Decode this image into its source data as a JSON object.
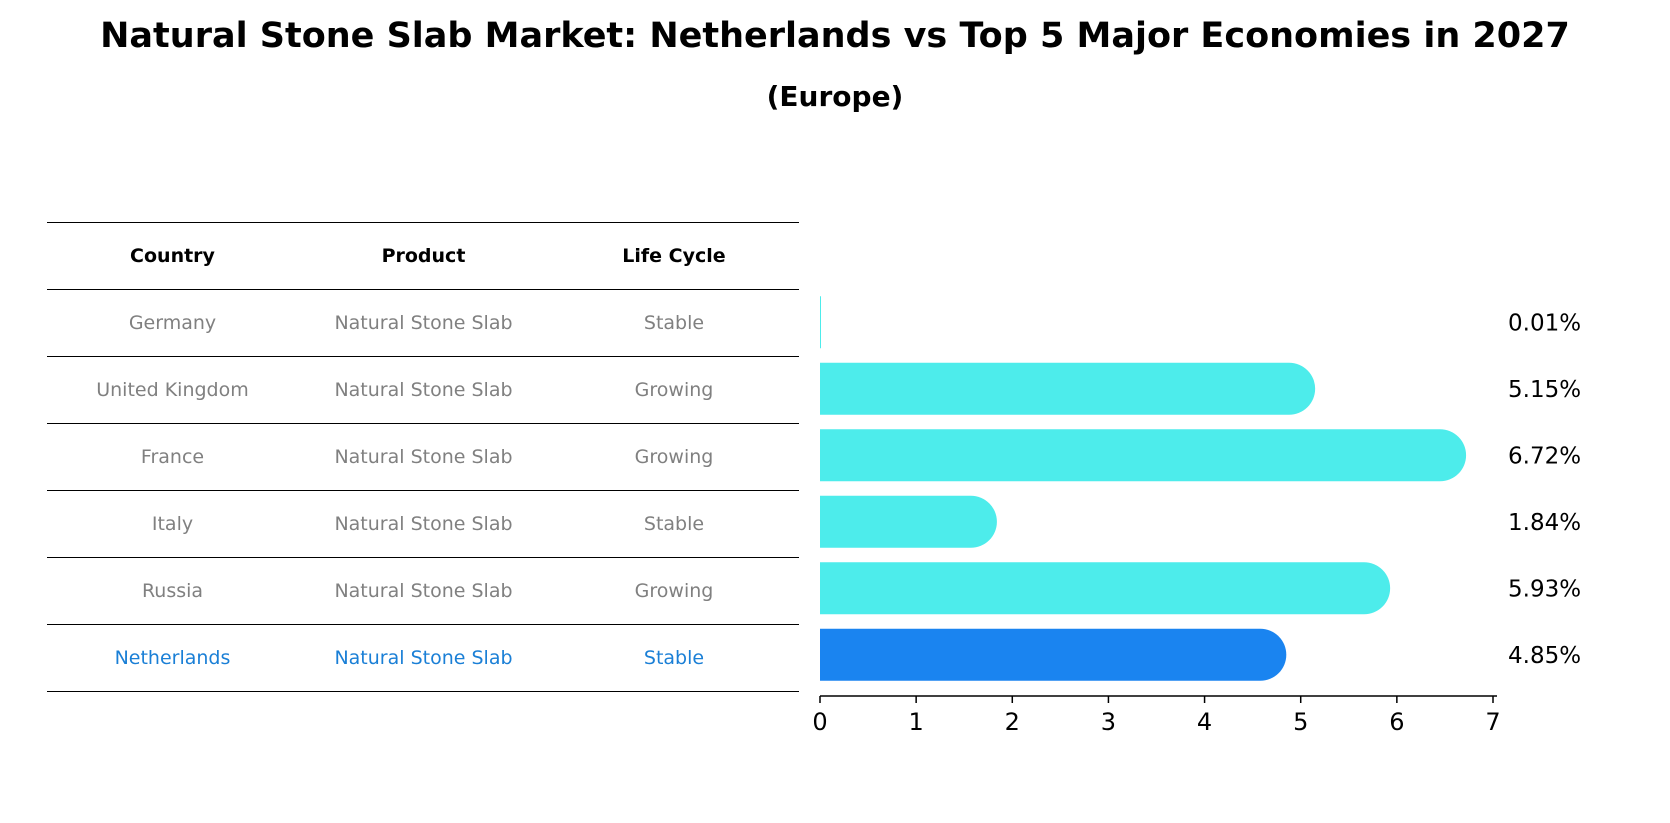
{
  "header": {
    "title": "Natural Stone Slab Market: Netherlands vs Top 5 Major Economies in 2027",
    "subtitle": "(Europe)"
  },
  "table": {
    "columns": [
      "Country",
      "Product",
      "Life Cycle"
    ],
    "rows": [
      {
        "country": "Germany",
        "product": "Natural Stone Slab",
        "life_cycle": "Stable"
      },
      {
        "country": "United Kingdom",
        "product": "Natural Stone Slab",
        "life_cycle": "Growing"
      },
      {
        "country": "France",
        "product": "Natural Stone Slab",
        "life_cycle": "Growing"
      },
      {
        "country": "Italy",
        "product": "Natural Stone Slab",
        "life_cycle": "Stable"
      },
      {
        "country": "Russia",
        "product": "Natural Stone Slab",
        "life_cycle": "Growing"
      },
      {
        "country": "Netherlands",
        "product": "Natural Stone Slab",
        "life_cycle": "Stable"
      }
    ]
  },
  "chart_data": {
    "type": "bar",
    "orientation": "horizontal",
    "categories": [
      "Germany",
      "United Kingdom",
      "France",
      "Italy",
      "Russia",
      "Netherlands"
    ],
    "values": [
      0.01,
      5.15,
      6.72,
      1.84,
      5.93,
      4.85
    ],
    "value_labels": [
      "0.01%",
      "5.15%",
      "6.72%",
      "1.84%",
      "5.93%",
      "4.85%"
    ],
    "xlim": [
      0,
      7
    ],
    "xticks": [
      "0",
      "1",
      "2",
      "3",
      "4",
      "5",
      "6",
      "7"
    ],
    "colors": {
      "default": "#4deceb",
      "highlight": "#1a84f0",
      "highlight_text": "#1a7fd6",
      "muted_text": "#808080"
    },
    "highlight_category": "Netherlands"
  }
}
